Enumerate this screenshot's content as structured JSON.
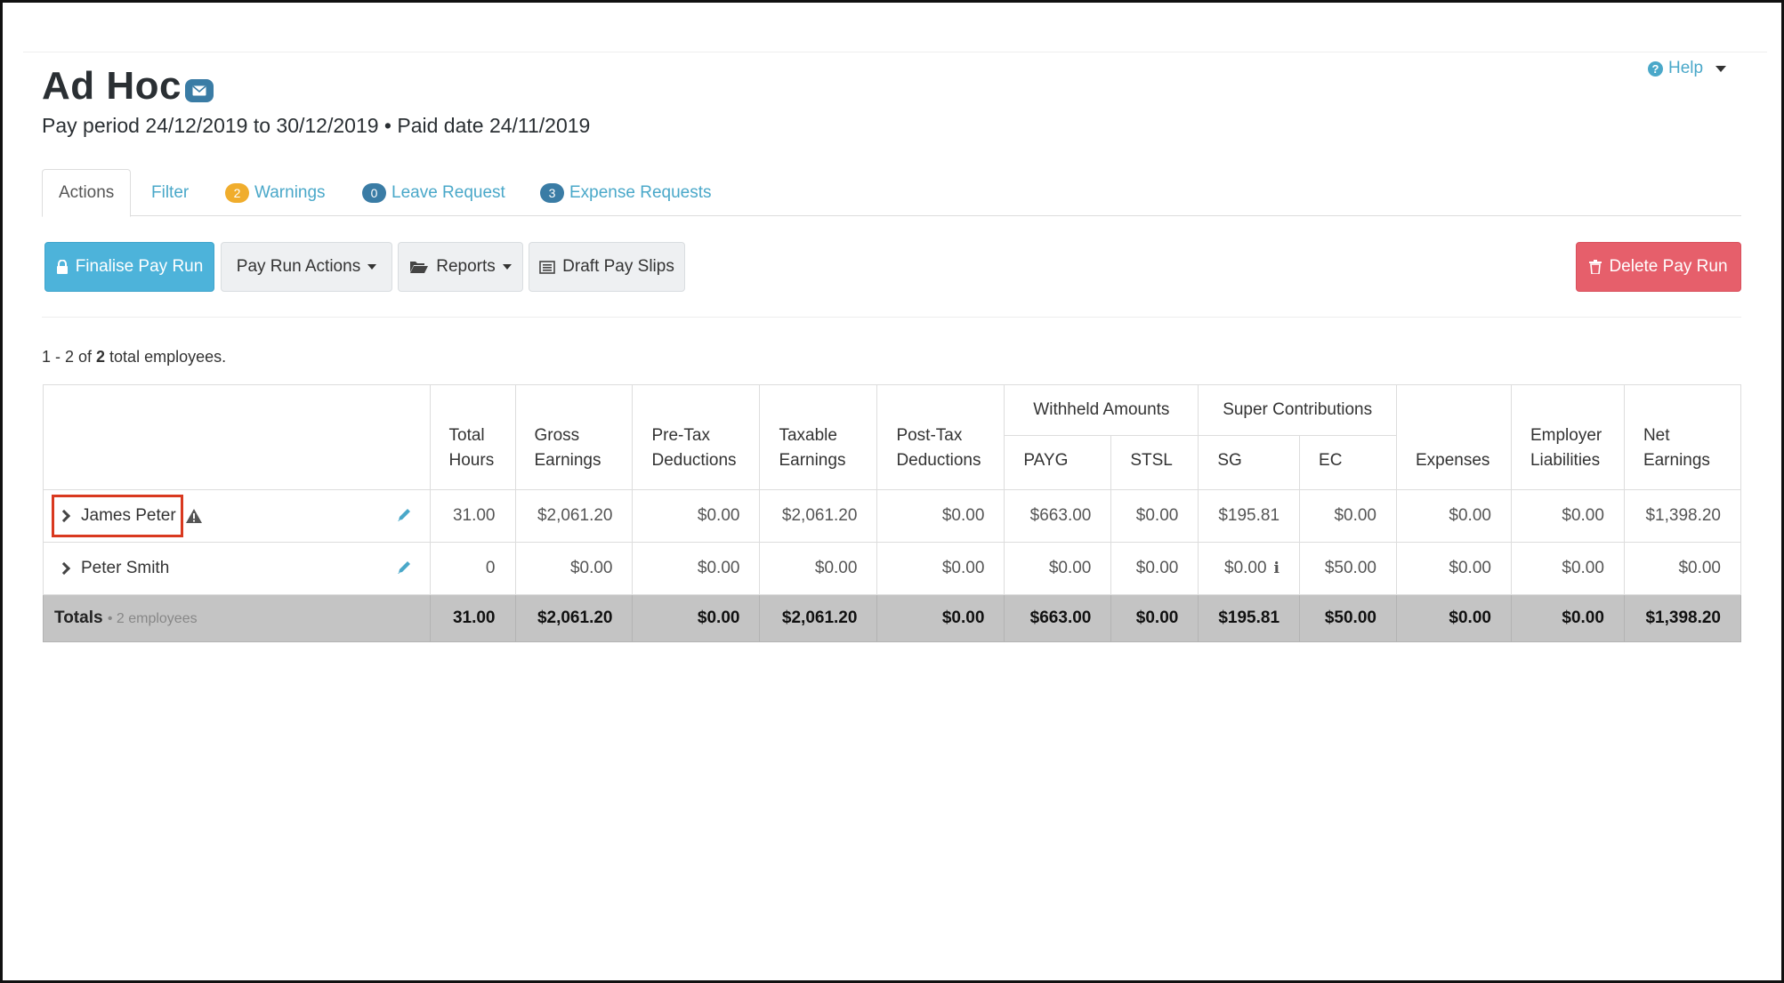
{
  "header": {
    "title": "Ad Hoc",
    "subtitle": "Pay period 24/12/2019 to 30/12/2019 • Paid date 24/11/2019",
    "help_label": "Help"
  },
  "tabs": [
    {
      "label": "Actions",
      "badge": ""
    },
    {
      "label": "Filter",
      "badge": ""
    },
    {
      "label": "Warnings",
      "badge": "2"
    },
    {
      "label": "Leave Request",
      "badge": "0"
    },
    {
      "label": "Expense Requests",
      "badge": "3"
    }
  ],
  "toolbar": {
    "finalise": "Finalise Pay Run",
    "pay_run_actions": "Pay Run Actions",
    "reports": "Reports",
    "draft_pay_slips": "Draft Pay Slips",
    "delete": "Delete Pay Run"
  },
  "summary": {
    "range": "1 - 2 of ",
    "total": "2",
    "suffix": " total employees."
  },
  "table": {
    "headers": {
      "total_hours": [
        "Total",
        "Hours"
      ],
      "gross": [
        "Gross",
        "Earnings"
      ],
      "pretax": [
        "Pre-Tax",
        "Deductions"
      ],
      "taxable": [
        "Taxable",
        "Earnings"
      ],
      "posttax": [
        "Post-Tax",
        "Deductions"
      ],
      "withheld": "Withheld Amounts",
      "payg": "PAYG",
      "stsl": "STSL",
      "super": "Super Contributions",
      "sg": "SG",
      "ec": "EC",
      "expenses": "Expenses",
      "employer": [
        "Employer",
        "Liabilities"
      ],
      "net": [
        "Net",
        "Earnings"
      ]
    },
    "rows": [
      {
        "name": "James Peter",
        "hours": "31.00",
        "gross": "$2,061.20",
        "pretax": "$0.00",
        "taxable": "$2,061.20",
        "posttax": "$0.00",
        "payg": "$663.00",
        "stsl": "$0.00",
        "sg": "$195.81",
        "ec": "$0.00",
        "expenses": "$0.00",
        "employer": "$0.00",
        "net": "$1,398.20"
      },
      {
        "name": "Peter Smith",
        "hours": "0",
        "gross": "$0.00",
        "pretax": "$0.00",
        "taxable": "$0.00",
        "posttax": "$0.00",
        "payg": "$0.00",
        "stsl": "$0.00",
        "sg": "$0.00",
        "ec": "$50.00",
        "expenses": "$0.00",
        "employer": "$0.00",
        "net": "$0.00"
      }
    ],
    "totals": {
      "label": "Totals",
      "note": "• 2 employees",
      "hours": "31.00",
      "gross": "$2,061.20",
      "pretax": "$0.00",
      "taxable": "$2,061.20",
      "posttax": "$0.00",
      "payg": "$663.00",
      "stsl": "$0.00",
      "sg": "$195.81",
      "ec": "$50.00",
      "expenses": "$0.00",
      "employer": "$0.00",
      "net": "$1,398.20"
    }
  },
  "colors": {
    "primary": "#4db3da",
    "danger": "#e65f6b",
    "link": "#4aa8c9",
    "warning_badge": "#f0ad2d",
    "info_badge": "#3a7ca5",
    "totals_bg": "#c4c4c4",
    "highlight": "#d9391f"
  }
}
